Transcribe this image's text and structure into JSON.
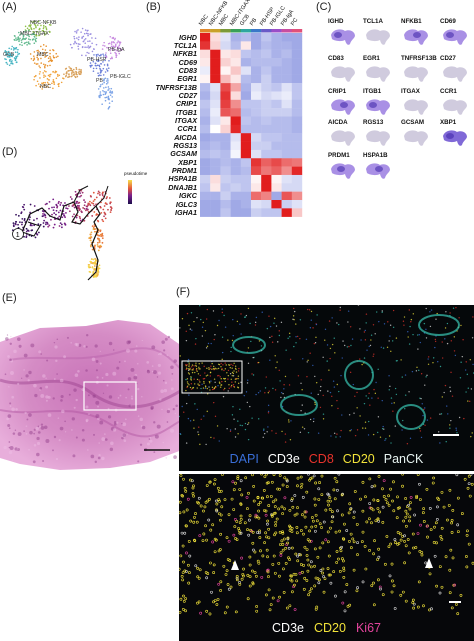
{
  "panels": {
    "A": {
      "label": "(A)",
      "clusters": [
        "NBC-NFKB",
        "MBC-ITGAX",
        "GCB",
        "MBC",
        "NBC",
        "PB",
        "PB-HSP",
        "PB-IgA",
        "PB-IGLC"
      ]
    },
    "B": {
      "label": "(B)"
    },
    "C": {
      "label": "(C)",
      "genes": [
        "IGHD",
        "TCL1A",
        "NFKB1",
        "CD69",
        "CD83",
        "EGR1",
        "TNFRSF13B",
        "CD27",
        "CRIP1",
        "ITGB1",
        "ITGAX",
        "CCR1",
        "AICDA",
        "RGS13",
        "GCSAM",
        "XBP1",
        "PRDM1",
        "HSPA1B"
      ]
    },
    "D": {
      "label": "(D)",
      "legend_title": "pseudotime",
      "root_label": "1"
    },
    "E": {
      "label": "(E)"
    },
    "F": {
      "label": "(F)",
      "top_legend": [
        {
          "text": "DAPI",
          "color": "#3a6fd8"
        },
        {
          "text": "CD3e",
          "color": "#ffffff"
        },
        {
          "text": "CD8",
          "color": "#e8342c"
        },
        {
          "text": "CD20",
          "color": "#f2e33a"
        },
        {
          "text": "PanCK",
          "color": "#e8f4f2"
        }
      ],
      "bottom_legend": [
        {
          "text": "CD3e",
          "color": "#ffffff"
        },
        {
          "text": "CD20",
          "color": "#f2e33a"
        },
        {
          "text": "Ki67",
          "color": "#e2449c"
        }
      ]
    }
  },
  "chart_data": {
    "type": "heatmap",
    "columns": [
      "NBC",
      "NBC-NFKB",
      "MBC",
      "MBC-ITGAX",
      "GCB",
      "PB",
      "PB-HSP",
      "PB-IGLC",
      "PB-IgA",
      "PC"
    ],
    "rows": [
      "IGHD",
      "TCL1A",
      "NFKB1",
      "CD69",
      "CD83",
      "EGR1",
      "TNFRSF13B",
      "CD27",
      "CRIP1",
      "ITGB1",
      "ITGAX",
      "CCR1",
      "AICDA",
      "RGS13",
      "GCSAM",
      "XBP1",
      "PRDM1",
      "HSPA1B",
      "DNAJB1",
      "IGKC",
      "IGLC3",
      "IGHA1"
    ],
    "values": [
      [
        2.0,
        0.3,
        -0.3,
        -0.8,
        -0.7,
        -0.9,
        -0.6,
        -0.8,
        -0.9,
        -0.9
      ],
      [
        1.8,
        0.4,
        -0.4,
        -0.7,
        0.2,
        -0.9,
        -0.7,
        -0.8,
        -0.8,
        -0.9
      ],
      [
        0.3,
        2.0,
        0.2,
        0.3,
        -0.6,
        -0.7,
        -0.6,
        -0.8,
        -0.7,
        -0.9
      ],
      [
        0.2,
        2.0,
        0.4,
        0.2,
        -0.8,
        -0.7,
        -0.7,
        -0.7,
        -0.8,
        -0.9
      ],
      [
        -0.2,
        2.0,
        0.1,
        0.5,
        -0.3,
        -0.8,
        -0.6,
        -0.8,
        -0.8,
        -0.9
      ],
      [
        0.1,
        2.0,
        0.6,
        0.2,
        -0.7,
        -0.8,
        -0.5,
        -0.8,
        -0.8,
        -0.9
      ],
      [
        -0.7,
        -0.3,
        1.6,
        0.8,
        -0.8,
        -0.3,
        -0.5,
        -0.6,
        -0.3,
        -0.6
      ],
      [
        -0.8,
        -0.4,
        1.8,
        0.3,
        -0.9,
        -0.2,
        -0.4,
        -0.3,
        -0.2,
        -0.6
      ],
      [
        -0.6,
        -0.3,
        1.7,
        1.0,
        -0.6,
        -0.6,
        -0.5,
        -0.6,
        -0.3,
        -0.7
      ],
      [
        -0.7,
        -0.2,
        1.5,
        1.3,
        -0.7,
        -0.6,
        -0.5,
        -0.5,
        -0.5,
        -0.7
      ],
      [
        -0.8,
        -0.3,
        0.2,
        2.0,
        -0.6,
        -0.7,
        -0.6,
        -0.7,
        -0.7,
        -0.8
      ],
      [
        -0.7,
        0.0,
        0.4,
        1.9,
        -0.7,
        -0.7,
        -0.7,
        -0.7,
        -0.7,
        -0.8
      ],
      [
        -0.9,
        -0.8,
        -0.8,
        -0.3,
        2.0,
        -0.4,
        -0.6,
        -0.6,
        -0.7,
        -0.7
      ],
      [
        -0.8,
        -0.7,
        -0.8,
        -0.2,
        2.0,
        -0.5,
        -0.5,
        -0.7,
        -0.7,
        -0.7
      ],
      [
        -0.7,
        -0.6,
        -0.7,
        -0.1,
        2.0,
        -0.3,
        -0.6,
        -0.6,
        -0.7,
        -0.7
      ],
      [
        -0.9,
        -0.8,
        -0.7,
        -0.8,
        -0.6,
        1.8,
        1.4,
        1.6,
        1.3,
        1.2
      ],
      [
        -0.9,
        -0.8,
        -0.6,
        -0.8,
        -0.7,
        1.6,
        1.2,
        1.4,
        1.0,
        1.9
      ],
      [
        -0.5,
        0.3,
        -0.5,
        -0.6,
        -0.6,
        0.1,
        2.0,
        0.1,
        -0.3,
        -0.4
      ],
      [
        -0.6,
        0.2,
        -0.6,
        -0.5,
        -0.6,
        0.2,
        2.0,
        0.2,
        -0.4,
        -0.4
      ],
      [
        -0.8,
        -0.8,
        -0.5,
        -0.8,
        -0.8,
        1.3,
        1.1,
        -0.9,
        1.5,
        1.0
      ],
      [
        -0.9,
        -0.9,
        -0.7,
        -0.9,
        -0.8,
        -0.3,
        -0.4,
        2.0,
        -0.5,
        -0.3
      ],
      [
        -0.9,
        -0.9,
        -0.6,
        -0.9,
        -0.9,
        -0.5,
        -0.6,
        -0.6,
        2.0,
        0.5
      ]
    ],
    "column_colors": [
      "#e08a2c",
      "#c9a22a",
      "#7c9a3a",
      "#3aa05a",
      "#2fa6a0",
      "#3a78c8",
      "#6a5ac8",
      "#9a4ec8",
      "#c84ea0",
      "#e0507a"
    ],
    "color_scale": {
      "low": "#2b3fc8",
      "mid": "#ffffff",
      "high": "#e11d1d"
    }
  }
}
